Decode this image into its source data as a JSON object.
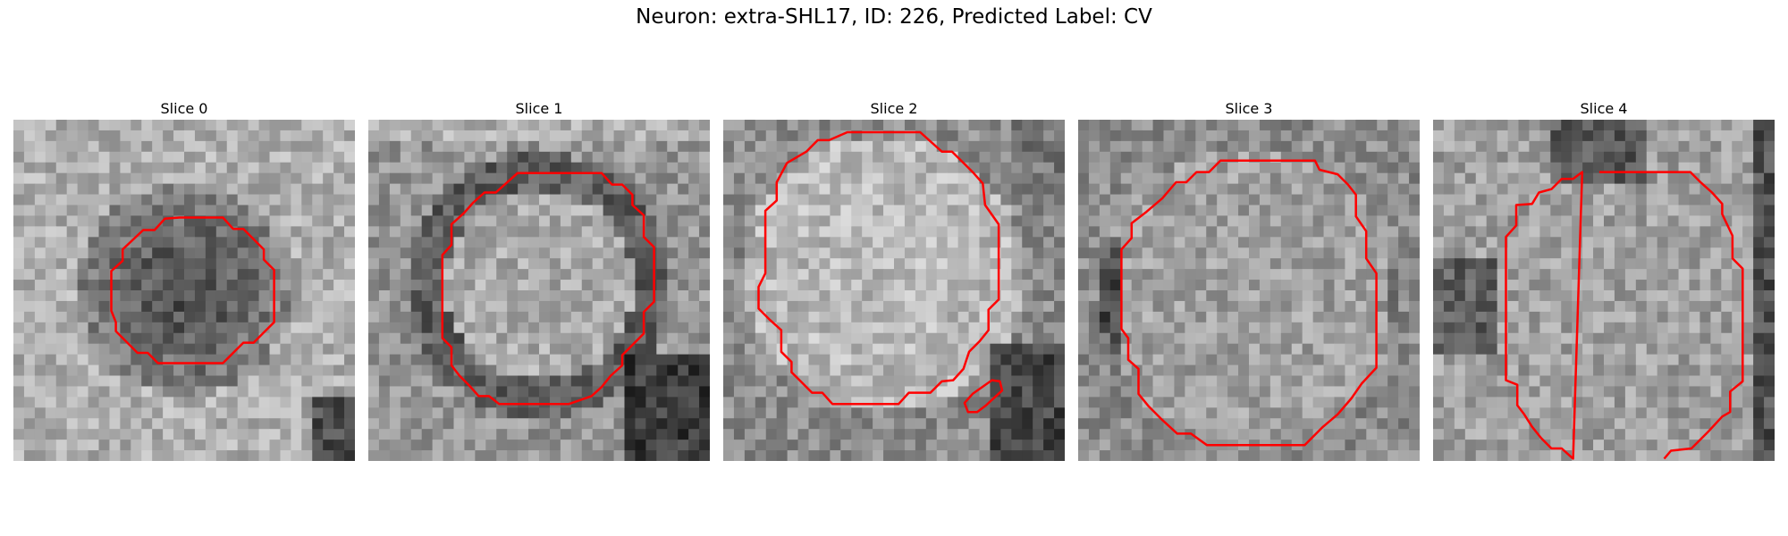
{
  "figure": {
    "title": "Neuron: extra-SHL17, ID: 226, Predicted Label: CV",
    "contour_color": "#ff0000",
    "image_style": "grayscale pixelated microscopy crop with red segmentation contour"
  },
  "slices": [
    {
      "title": "Slice 0"
    },
    {
      "title": "Slice 1"
    },
    {
      "title": "Slice 2"
    },
    {
      "title": "Slice 3"
    },
    {
      "title": "Slice 4"
    }
  ]
}
